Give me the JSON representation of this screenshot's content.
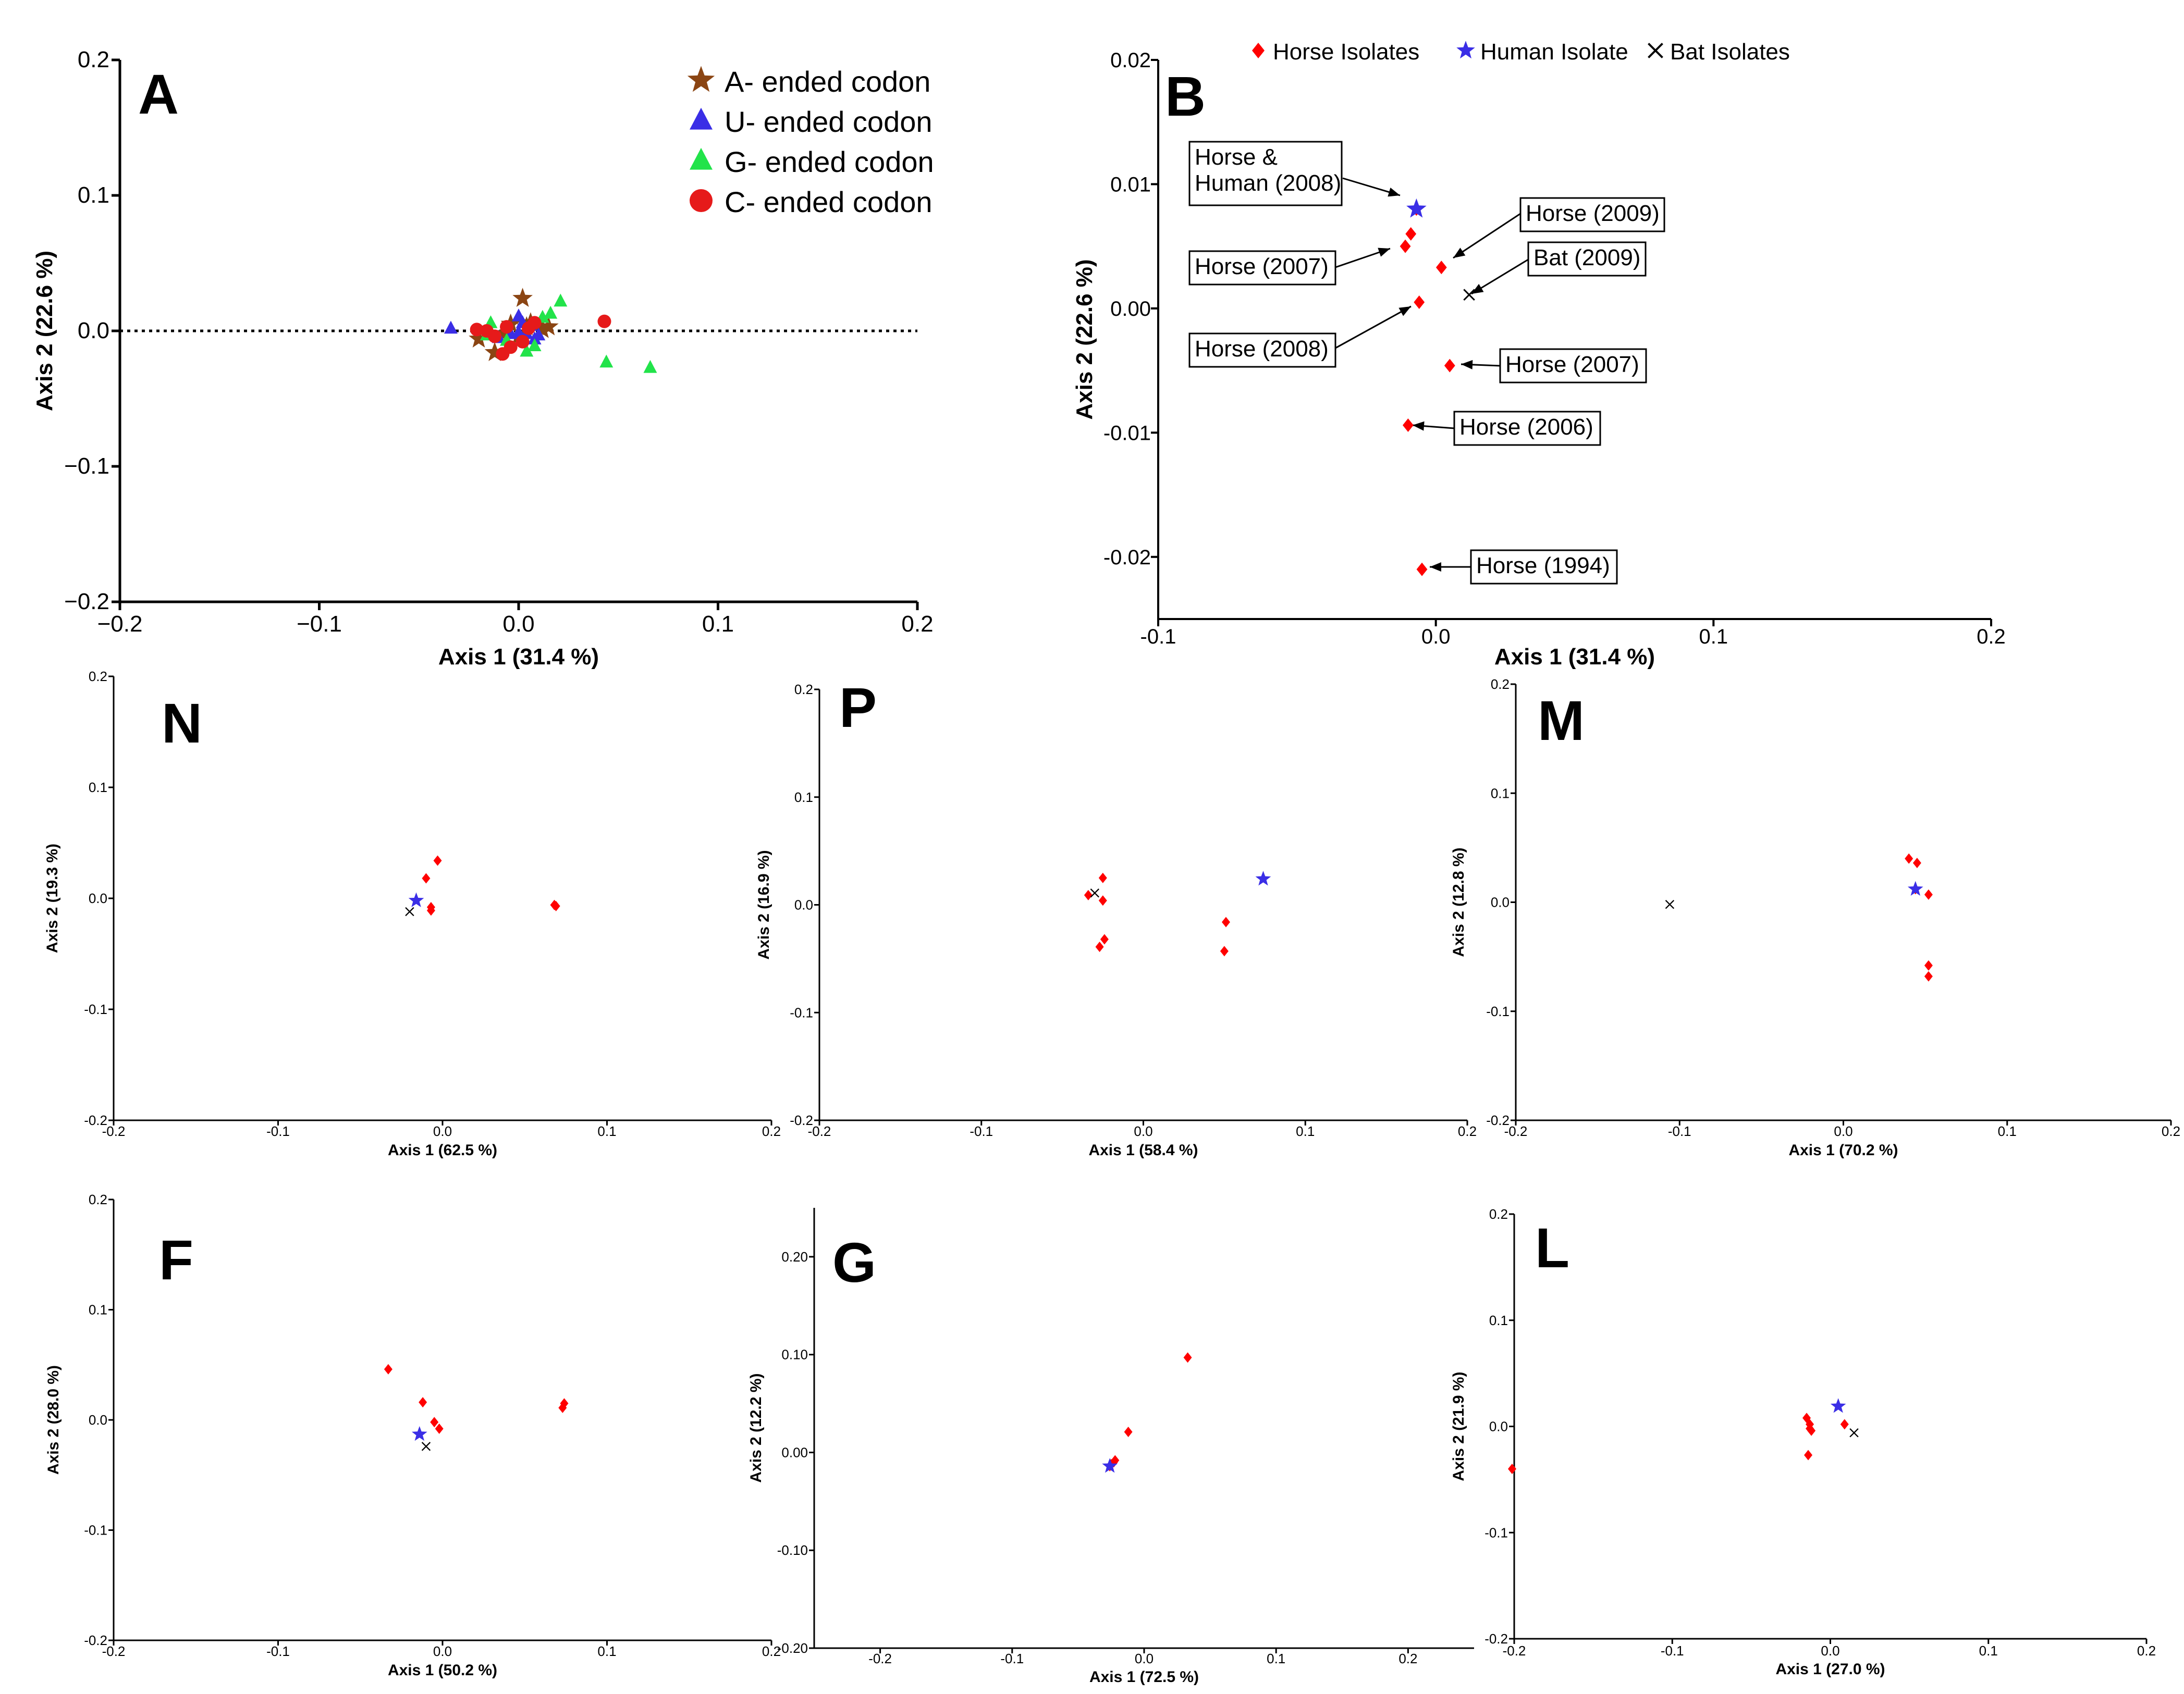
{
  "chart_data": [
    {
      "id": "A",
      "type": "scatter",
      "panel_label": "A",
      "xlabel": "Axis 1 (31.4 %)",
      "ylabel": "Axis 2 (22.6 %)",
      "xlim": [
        -0.2,
        0.2
      ],
      "ylim": [
        -0.2,
        0.2
      ],
      "xticks": [
        -0.2,
        -0.1,
        0.0,
        0.1,
        0.2
      ],
      "yticks": [
        -0.2,
        -0.1,
        0.0,
        0.1,
        0.2
      ],
      "xtick_labels": [
        "−0.2",
        "−0.1",
        "0.0",
        "0.1",
        "0.2"
      ],
      "ytick_labels": [
        "−0.2",
        "−0.1",
        "0.0",
        "0.1",
        "0.2"
      ],
      "zero_line": "dotted",
      "legend": "top-right",
      "series": [
        {
          "name": "A- ended codon",
          "marker": "star",
          "color": "#8b4513",
          "points": [
            [
              0.002,
              0.024
            ],
            [
              -0.02,
              -0.006
            ],
            [
              0.004,
              0.003
            ],
            [
              -0.008,
              -0.002
            ],
            [
              0.012,
              0.001
            ],
            [
              0.0,
              -0.004
            ],
            [
              0.006,
              0.006
            ],
            [
              -0.012,
              -0.016
            ],
            [
              0.015,
              0.003
            ],
            [
              -0.004,
              0.005
            ]
          ]
        },
        {
          "name": "U- ended codon",
          "marker": "triangle",
          "color": "#3a2ee6",
          "points": [
            [
              -0.034,
              0.002
            ],
            [
              0.0,
              0.011
            ],
            [
              0.004,
              -0.002
            ],
            [
              0.008,
              -0.006
            ],
            [
              -0.004,
              -0.002
            ],
            [
              0.002,
              0.006
            ],
            [
              0.01,
              -0.003
            ],
            [
              -0.01,
              -0.005
            ],
            [
              0.006,
              0.004
            ],
            [
              0.0,
              -0.001
            ]
          ]
        },
        {
          "name": "G- ended codon",
          "marker": "triangle",
          "color": "#22e34a",
          "points": [
            [
              0.021,
              0.022
            ],
            [
              0.044,
              -0.023
            ],
            [
              0.066,
              -0.027
            ],
            [
              0.012,
              0.01
            ],
            [
              0.004,
              -0.015
            ],
            [
              -0.014,
              0.006
            ],
            [
              0.016,
              0.013
            ],
            [
              -0.006,
              -0.007
            ],
            [
              0.008,
              -0.011
            ],
            [
              -0.016,
              -0.003
            ]
          ]
        },
        {
          "name": "C- ended codon",
          "marker": "circle",
          "color": "#e61a1a",
          "points": [
            [
              0.043,
              0.007
            ],
            [
              -0.021,
              0.001
            ],
            [
              -0.008,
              -0.017
            ],
            [
              0.008,
              0.006
            ],
            [
              -0.012,
              -0.004
            ],
            [
              0.002,
              -0.008
            ],
            [
              -0.016,
              0.0
            ],
            [
              0.005,
              0.002
            ],
            [
              -0.006,
              0.003
            ],
            [
              -0.004,
              -0.012
            ]
          ]
        }
      ]
    },
    {
      "id": "B",
      "type": "scatter",
      "panel_label": "B",
      "xlabel": "Axis 1 (31.4 %)",
      "ylabel": "Axis 2 (22.6 %)",
      "xlim": [
        -0.1,
        0.2
      ],
      "ylim": [
        -0.025,
        0.02
      ],
      "xticks": [
        -0.1,
        0.0,
        0.1,
        0.2
      ],
      "yticks": [
        -0.02,
        -0.01,
        0.0,
        0.01,
        0.02
      ],
      "xtick_labels": [
        "-0.1",
        "0.0",
        "0.1",
        "0.2"
      ],
      "ytick_labels": [
        "-0.02",
        "-0.01",
        "0.00",
        "0.01",
        "0.02"
      ],
      "legend": "top",
      "series": [
        {
          "name": "Horse Isolates",
          "marker": "diamond",
          "color": "#ff0000",
          "points": [
            [
              -0.007,
              0.008
            ],
            [
              -0.009,
              0.006
            ],
            [
              -0.011,
              0.005
            ],
            [
              0.002,
              0.0033
            ],
            [
              -0.006,
              0.0005
            ],
            [
              0.005,
              -0.0046
            ],
            [
              -0.01,
              -0.0094
            ],
            [
              -0.005,
              -0.021
            ]
          ]
        },
        {
          "name": "Human Isolate",
          "marker": "star",
          "color": "#3a2ee6",
          "points": [
            [
              -0.007,
              0.008
            ]
          ]
        },
        {
          "name": "Bat Isolates",
          "marker": "x",
          "color": "#000000",
          "points": [
            [
              0.012,
              0.0011
            ]
          ]
        }
      ],
      "annotations": [
        {
          "text": [
            "Horse &",
            "Human (2008)"
          ],
          "point": [
            -0.007,
            0.008
          ]
        },
        {
          "text": [
            "Horse (2009)"
          ],
          "point": [
            0.002,
            0.0033
          ]
        },
        {
          "text": [
            "Bat (2009)"
          ],
          "point": [
            0.012,
            0.0011
          ]
        },
        {
          "text": [
            "Horse (2007)"
          ],
          "point": [
            -0.011,
            0.005
          ]
        },
        {
          "text": [
            "Horse (2008)"
          ],
          "point": [
            -0.006,
            0.0005
          ]
        },
        {
          "text": [
            "Horse (2007)"
          ],
          "point": [
            0.005,
            -0.0046
          ]
        },
        {
          "text": [
            "Horse (2006)"
          ],
          "point": [
            -0.01,
            -0.0094
          ]
        },
        {
          "text": [
            "Horse (1994)"
          ],
          "point": [
            -0.005,
            -0.021
          ]
        }
      ]
    },
    {
      "id": "N",
      "type": "scatter",
      "panel_label": "N",
      "xlabel": "Axis 1 (62.5 %)",
      "ylabel": "Axis 2 (19.3 %)",
      "xlim": [
        -0.2,
        0.2
      ],
      "ylim": [
        -0.2,
        0.2
      ],
      "xticks": [
        -0.2,
        -0.1,
        0.0,
        0.1,
        0.2
      ],
      "yticks": [
        -0.2,
        -0.1,
        0.0,
        0.1,
        0.2
      ],
      "xtick_labels": [
        "-0.2",
        "-0.1",
        "0.0",
        "0.1",
        "0.2"
      ],
      "ytick_labels": [
        "-0.2",
        "-0.1",
        "0.0",
        "0.1",
        "0.2"
      ],
      "series": [
        {
          "name": "Horse Isolates",
          "marker": "diamond",
          "color": "#ff0000",
          "points": [
            [
              -0.003,
              0.034
            ],
            [
              -0.01,
              0.018
            ],
            [
              -0.007,
              -0.008
            ],
            [
              -0.007,
              -0.011
            ],
            [
              0.068,
              -0.006
            ],
            [
              0.069,
              -0.007
            ]
          ]
        },
        {
          "name": "Human Isolate",
          "marker": "star",
          "color": "#3a2ee6",
          "points": [
            [
              -0.016,
              -0.002
            ]
          ]
        },
        {
          "name": "Bat Isolates",
          "marker": "x",
          "color": "#000000",
          "points": [
            [
              -0.02,
              -0.012
            ]
          ]
        }
      ]
    },
    {
      "id": "P",
      "type": "scatter",
      "panel_label": "P",
      "xlabel": "Axis 1 (58.4 %)",
      "ylabel": "Axis 2 (16.9 %)",
      "xlim": [
        -0.2,
        0.2
      ],
      "ylim": [
        -0.2,
        0.2
      ],
      "xticks": [
        -0.2,
        -0.1,
        0.0,
        0.1,
        0.2
      ],
      "yticks": [
        -0.2,
        -0.1,
        0.0,
        0.1,
        0.2
      ],
      "xtick_labels": [
        "-0.2",
        "-0.1",
        "0.0",
        "0.1",
        "0.2"
      ],
      "ytick_labels": [
        "-0.2",
        "-0.1",
        "0.0",
        "0.1",
        "0.2"
      ],
      "series": [
        {
          "name": "Horse Isolates",
          "marker": "diamond",
          "color": "#ff0000",
          "points": [
            [
              -0.025,
              0.025
            ],
            [
              -0.034,
              0.009
            ],
            [
              -0.025,
              0.004
            ],
            [
              -0.024,
              -0.032
            ],
            [
              -0.027,
              -0.039
            ],
            [
              0.051,
              -0.016
            ],
            [
              0.05,
              -0.043
            ]
          ]
        },
        {
          "name": "Human Isolate",
          "marker": "star",
          "color": "#3a2ee6",
          "points": [
            [
              0.074,
              0.024
            ]
          ]
        },
        {
          "name": "Bat Isolates",
          "marker": "x",
          "color": "#000000",
          "points": [
            [
              -0.03,
              0.011
            ]
          ]
        }
      ]
    },
    {
      "id": "M",
      "type": "scatter",
      "panel_label": "M",
      "xlabel": "Axis 1 (70.2 %)",
      "ylabel": "Axis 2 (12.8 %)",
      "xlim": [
        -0.2,
        0.2
      ],
      "ylim": [
        -0.2,
        0.2
      ],
      "xticks": [
        -0.2,
        -0.1,
        0.0,
        0.1,
        0.2
      ],
      "yticks": [
        -0.2,
        -0.1,
        0.0,
        0.1,
        0.2
      ],
      "xtick_labels": [
        "-0.2",
        "-0.1",
        "0.0",
        "0.1",
        "0.2"
      ],
      "ytick_labels": [
        "-0.2",
        "-0.1",
        "0.0",
        "0.1",
        "0.2"
      ],
      "series": [
        {
          "name": "Horse Isolates",
          "marker": "diamond",
          "color": "#ff0000",
          "points": [
            [
              0.04,
              0.04
            ],
            [
              0.045,
              0.036
            ],
            [
              0.052,
              0.007
            ],
            [
              0.044,
              0.012
            ],
            [
              0.052,
              -0.058
            ],
            [
              0.052,
              -0.068
            ]
          ]
        },
        {
          "name": "Human Isolate",
          "marker": "star",
          "color": "#3a2ee6",
          "points": [
            [
              0.044,
              0.012
            ]
          ]
        },
        {
          "name": "Bat Isolates",
          "marker": "x",
          "color": "#000000",
          "points": [
            [
              -0.106,
              -0.002
            ]
          ]
        }
      ]
    },
    {
      "id": "F",
      "type": "scatter",
      "panel_label": "F",
      "xlabel": "Axis 1 (50.2 %)",
      "ylabel": "Axis 2 (28.0 %)",
      "xlim": [
        -0.2,
        0.2
      ],
      "ylim": [
        -0.2,
        0.2
      ],
      "xticks": [
        -0.2,
        -0.1,
        0.0,
        0.1,
        0.2
      ],
      "yticks": [
        -0.2,
        -0.1,
        0.0,
        0.1,
        0.2
      ],
      "xtick_labels": [
        "-0.2",
        "-0.1",
        "0.0",
        "0.1",
        "0.2"
      ],
      "ytick_labels": [
        "-0.2",
        "-0.1",
        "0.0",
        "0.1",
        "0.2"
      ],
      "series": [
        {
          "name": "Horse Isolates",
          "marker": "diamond",
          "color": "#ff0000",
          "points": [
            [
              -0.033,
              0.046
            ],
            [
              -0.012,
              0.016
            ],
            [
              -0.005,
              -0.002
            ],
            [
              -0.002,
              -0.008
            ],
            [
              0.074,
              0.015
            ],
            [
              0.073,
              0.011
            ]
          ]
        },
        {
          "name": "Human Isolate",
          "marker": "star",
          "color": "#3a2ee6",
          "points": [
            [
              -0.014,
              -0.013
            ]
          ]
        },
        {
          "name": "Bat Isolates",
          "marker": "x",
          "color": "#000000",
          "points": [
            [
              -0.01,
              -0.024
            ]
          ]
        }
      ]
    },
    {
      "id": "G",
      "type": "scatter",
      "panel_label": "G",
      "xlabel": "Axis 1 (72.5 %)",
      "ylabel": "Axis 2 (12.2 %)",
      "xlim": [
        -0.25,
        0.25
      ],
      "ylim": [
        -0.2,
        0.25
      ],
      "xticks": [
        -0.2,
        -0.1,
        0.0,
        0.1,
        0.2
      ],
      "yticks": [
        -0.2,
        -0.1,
        0.0,
        0.1,
        0.2
      ],
      "xtick_labels": [
        "-0.2",
        "-0.1",
        "0.0",
        "0.1",
        "0.2"
      ],
      "ytick_labels": [
        "-0.20",
        "-0.10",
        "0.00",
        "0.10",
        "0.20"
      ],
      "series": [
        {
          "name": "Horse Isolates",
          "marker": "diamond",
          "color": "#ff0000",
          "points": [
            [
              0.033,
              0.097
            ],
            [
              -0.012,
              0.021
            ],
            [
              -0.022,
              -0.008
            ],
            [
              -0.023,
              -0.01
            ],
            [
              -0.025,
              -0.012
            ],
            [
              -0.026,
              -0.014
            ]
          ]
        },
        {
          "name": "Human Isolate",
          "marker": "star",
          "color": "#3a2ee6",
          "points": [
            [
              -0.026,
              -0.014
            ]
          ]
        }
      ]
    },
    {
      "id": "L",
      "type": "scatter",
      "panel_label": "L",
      "xlabel": "Axis 1 (27.0 %)",
      "ylabel": "Axis 2 (21.9 %)",
      "xlim": [
        -0.2,
        0.2
      ],
      "ylim": [
        -0.2,
        0.2
      ],
      "xticks": [
        -0.2,
        -0.1,
        0.0,
        0.1,
        0.2
      ],
      "yticks": [
        -0.2,
        -0.1,
        0.0,
        0.1,
        0.2
      ],
      "xtick_labels": [
        "-0.2",
        "-0.1",
        "0.0",
        "0.1",
        "0.2"
      ],
      "ytick_labels": [
        "-0.2",
        "-0.1",
        "0.0",
        "0.1",
        "0.2"
      ],
      "series": [
        {
          "name": "Horse Isolates",
          "marker": "diamond",
          "color": "#ff0000",
          "points": [
            [
              -0.015,
              0.008
            ],
            [
              -0.013,
              0.002
            ],
            [
              -0.013,
              -0.002
            ],
            [
              -0.012,
              -0.004
            ],
            [
              -0.014,
              -0.027
            ],
            [
              0.009,
              0.002
            ],
            [
              -0.206,
              -0.04
            ]
          ]
        },
        {
          "name": "Human Isolate",
          "marker": "star",
          "color": "#3a2ee6",
          "points": [
            [
              0.005,
              0.019
            ]
          ]
        },
        {
          "name": "Bat Isolates",
          "marker": "x",
          "color": "#000000",
          "points": [
            [
              0.015,
              -0.006
            ]
          ]
        }
      ]
    }
  ]
}
